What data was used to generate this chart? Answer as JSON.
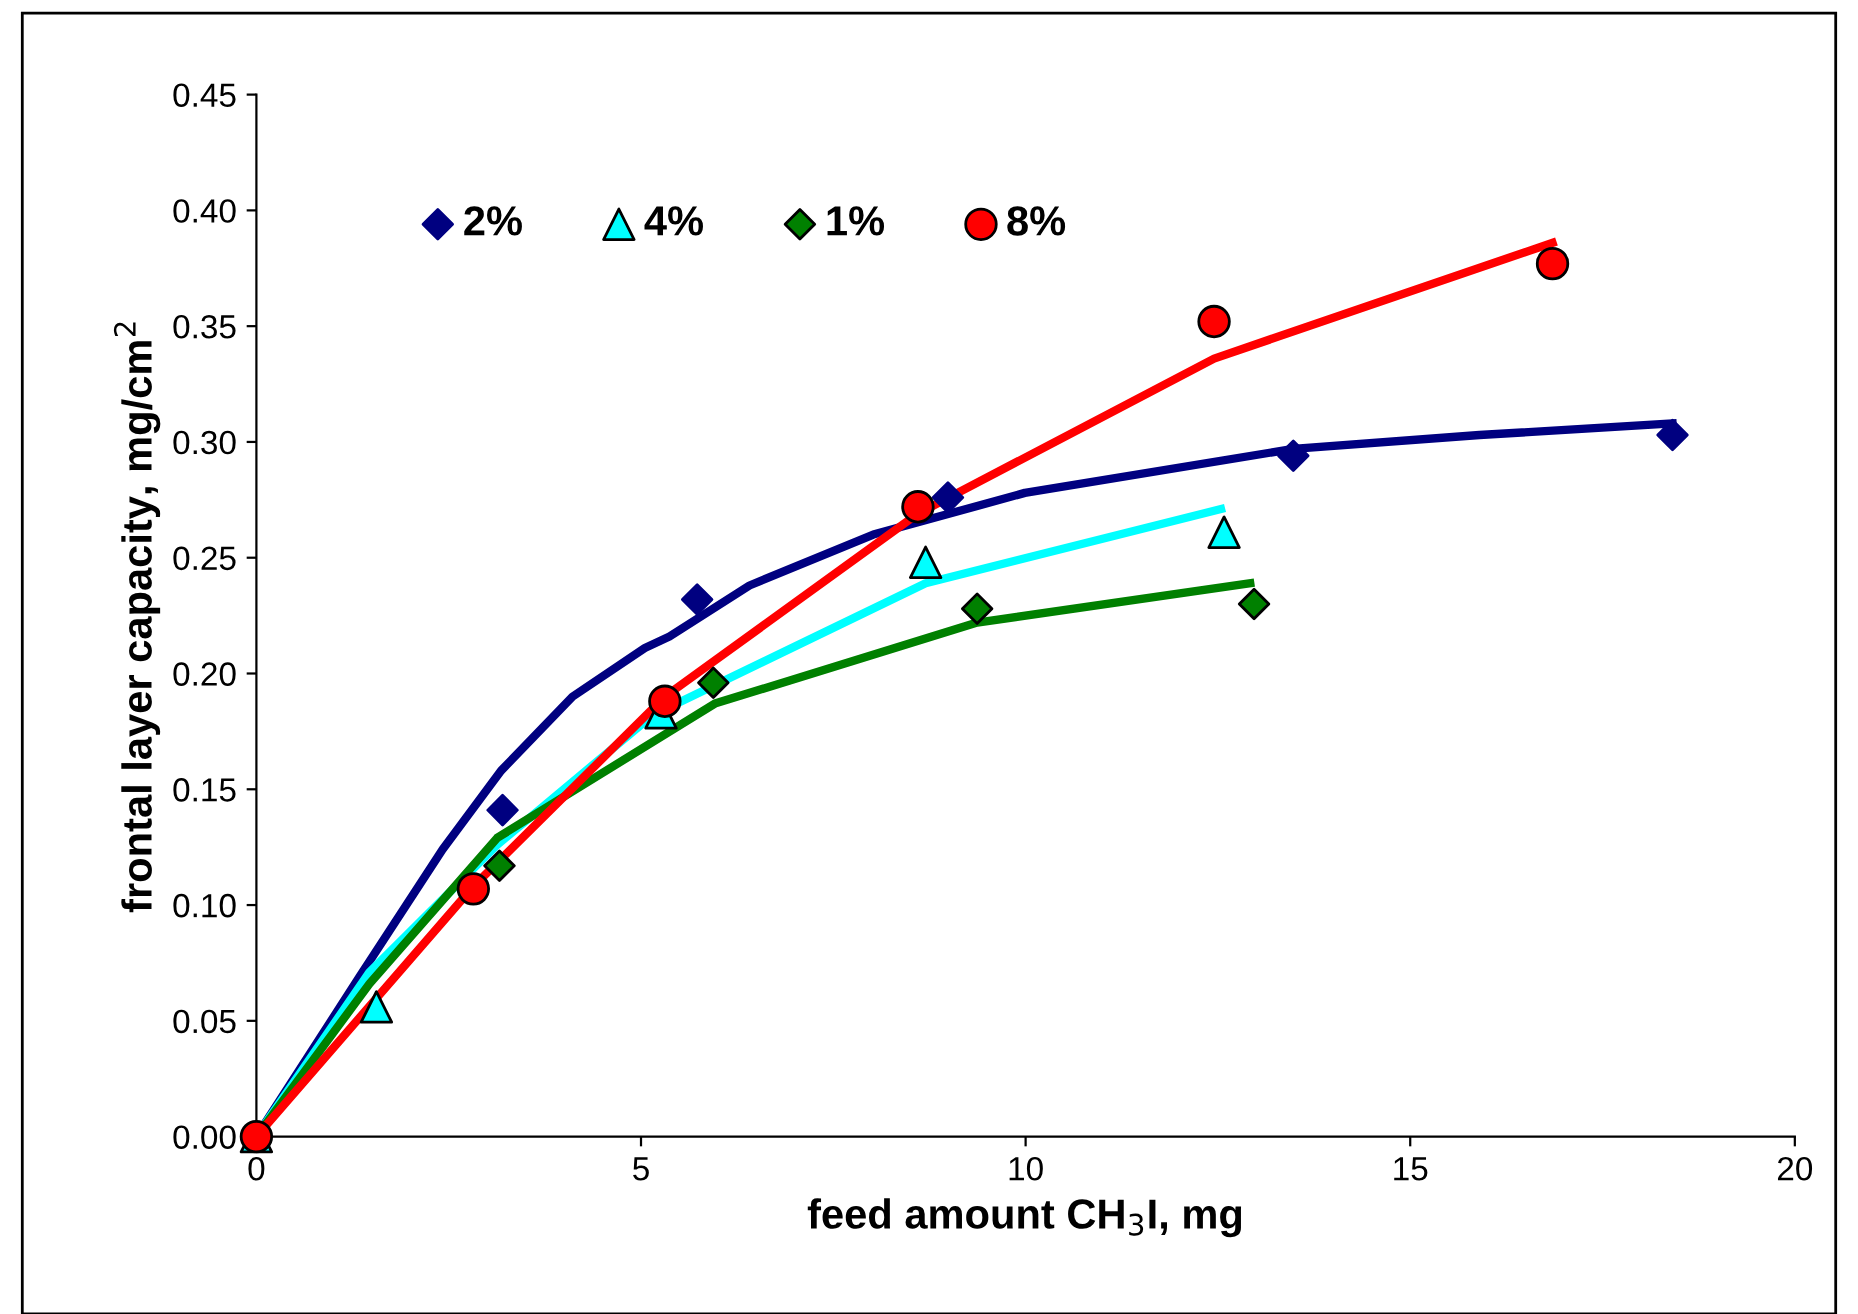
{
  "chart_data": {
    "type": "scatter",
    "xlabel": "feed amount CH$_{3}$I, mg",
    "ylabel": "frontal layer capacity, mg/cm$^{2}$",
    "xlim": [
      0,
      20
    ],
    "ylim": [
      0,
      0.45
    ],
    "xticks": [
      0,
      5,
      10,
      15,
      20
    ],
    "yticks": [
      {
        "value": 0,
        "label": "0.00"
      },
      {
        "value": 0.05,
        "label": "0.05"
      },
      {
        "value": 0.1,
        "label": "0.10"
      },
      {
        "value": 0.15,
        "label": "0.15"
      },
      {
        "value": 0.2,
        "label": "0.20"
      },
      {
        "value": 0.25,
        "label": "0.25"
      },
      {
        "value": 0.3,
        "label": "0.30"
      },
      {
        "value": 0.35,
        "label": "0.35"
      },
      {
        "value": 0.4,
        "label": "0.40"
      },
      {
        "value": 0.45,
        "label": "0.45"
      }
    ],
    "grid": false,
    "legend": "top left",
    "series": [
      {
        "name": "2%",
        "marker": "diamond",
        "color": "#000080",
        "x": [
          3.2,
          5.73,
          8.99,
          13.48,
          18.41
        ],
        "values": [
          0.141,
          0.232,
          0.276,
          0.294,
          0.303
        ]
      },
      {
        "name": "4%",
        "marker": "triangle",
        "color": "#00ffff",
        "x": [
          0,
          1.56,
          5.26,
          8.7,
          12.58
        ],
        "values": [
          0,
          0.056,
          0.183,
          0.248,
          0.261
        ]
      },
      {
        "name": "1%",
        "marker": "diamond",
        "color": "#008000",
        "x": [
          3.16,
          5.94,
          9.37,
          12.97
        ],
        "values": [
          0.117,
          0.196,
          0.228,
          0.23
        ]
      },
      {
        "name": "8%",
        "marker": "circle",
        "color": "#ff0000",
        "x": [
          0,
          2.82,
          5.31,
          8.6,
          12.45,
          16.85
        ],
        "values": [
          0,
          0.107,
          0.188,
          0.272,
          0.352,
          0.377
        ]
      },
      {
        "type": "line",
        "marker": "none",
        "color": "#000080",
        "x": [
          0,
          1.34,
          2.42,
          3.18,
          4.11,
          5.05,
          5.37,
          6.41,
          8.02,
          9.99,
          13.48,
          15.9,
          18.41
        ],
        "values": [
          0,
          0.069,
          0.124,
          0.158,
          0.19,
          0.211,
          0.216,
          0.238,
          0.26,
          0.278,
          0.297,
          0.303,
          0.308
        ]
      },
      {
        "type": "line",
        "marker": "none",
        "color": "#00ffff",
        "x": [
          0,
          1.47,
          3.13,
          5.15,
          8.7,
          12.54
        ],
        "values": [
          0,
          0.071,
          0.126,
          0.182,
          0.239,
          0.271
        ]
      },
      {
        "type": "line",
        "marker": "none",
        "color": "#008000",
        "x": [
          0,
          1.47,
          3.13,
          5.96,
          9.37,
          12.92
        ],
        "values": [
          0,
          0.066,
          0.129,
          0.187,
          0.222,
          0.239
        ]
      },
      {
        "type": "line",
        "marker": "none",
        "color": "#ff0000",
        "x": [
          0,
          2.82,
          5.31,
          8.6,
          12.45,
          16.85
        ],
        "values": [
          0,
          0.108,
          0.19,
          0.269,
          0.336,
          0.386
        ]
      }
    ]
  }
}
